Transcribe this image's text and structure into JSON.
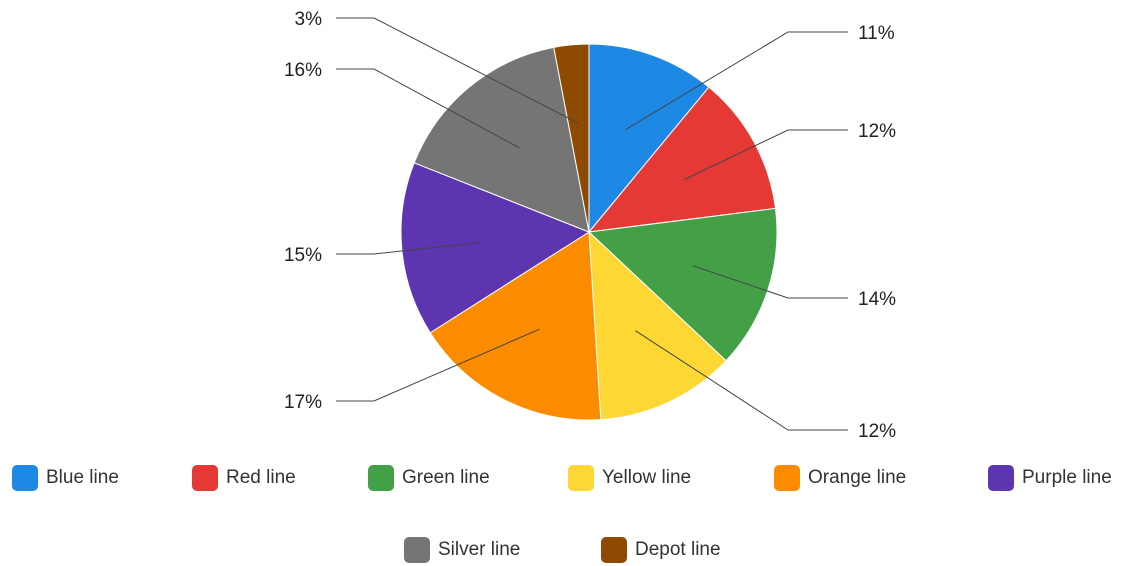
{
  "chart_data": {
    "type": "pie",
    "title": "",
    "legend_position": "bottom",
    "slices": [
      {
        "name": "Blue line",
        "value": 11,
        "label": "11%",
        "color": "#1e88e5"
      },
      {
        "name": "Red line",
        "value": 12,
        "label": "12%",
        "color": "#e53935"
      },
      {
        "name": "Green line",
        "value": 14,
        "label": "14%",
        "color": "#43a047"
      },
      {
        "name": "Yellow line",
        "value": 12,
        "label": "12%",
        "color": "#fdd835"
      },
      {
        "name": "Orange line",
        "value": 17,
        "label": "17%",
        "color": "#fb8c00"
      },
      {
        "name": "Purple line",
        "value": 15,
        "label": "15%",
        "color": "#5e35b1"
      },
      {
        "name": "Silver line",
        "value": 16,
        "label": "16%",
        "color": "#757575"
      },
      {
        "name": "Depot line",
        "value": 3,
        "label": "3%",
        "color": "#8d4a00"
      }
    ]
  }
}
